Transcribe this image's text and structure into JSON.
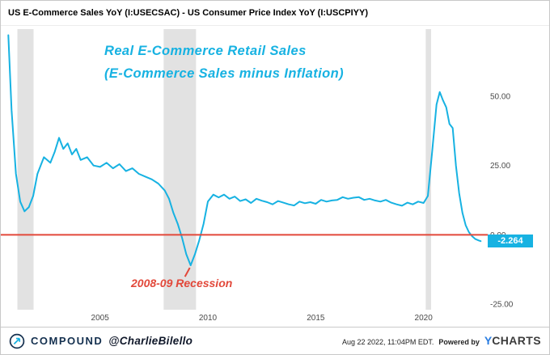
{
  "header": {
    "title": "US E-Commerce Sales YoY (I:USECSAC) - US Consumer Price Index YoY (I:USCPIYY)"
  },
  "annotations": {
    "main_line1": "Real E-Commerce Retail Sales",
    "main_line2": "(E-Commerce Sales minus Inflation)",
    "recession": "2008-09 Recession"
  },
  "badge": {
    "value": "-2.264"
  },
  "footer": {
    "brand": "COMPOUND",
    "handle": "@CharlieBilello",
    "timestamp": "Aug 22 2022, 11:04PM EDT.",
    "powered_by": "Powered by",
    "ycharts_y": "Y",
    "ycharts_rest": "CHARTS"
  },
  "colors": {
    "line": "#17b2e2",
    "red_line": "#e2483a",
    "band": "#e2e2e2",
    "axis_text": "#4a4a4a",
    "badge_bg": "#17b2e2",
    "badge_text": "#ffffff"
  },
  "chart_data": {
    "type": "line",
    "title": "US E-Commerce Sales YoY minus US CPI YoY (Real E-Commerce Retail Sales)",
    "series": [
      {
        "name": "US E-Commerce Sales YoY - US CPI YoY (%)",
        "x": [
          2000.75,
          2000.9,
          2001.1,
          2001.3,
          2001.5,
          2001.7,
          2001.9,
          2002.1,
          2002.4,
          2002.7,
          2002.9,
          2003.1,
          2003.3,
          2003.5,
          2003.7,
          2003.9,
          2004.1,
          2004.4,
          2004.7,
          2005.0,
          2005.3,
          2005.6,
          2005.9,
          2006.2,
          2006.5,
          2006.8,
          2007.1,
          2007.4,
          2007.7,
          2008.0,
          2008.2,
          2008.4,
          2008.6,
          2008.8,
          2009.0,
          2009.2,
          2009.4,
          2009.6,
          2009.8,
          2010.0,
          2010.25,
          2010.5,
          2010.75,
          2011.0,
          2011.25,
          2011.5,
          2011.75,
          2012.0,
          2012.25,
          2012.5,
          2012.75,
          2013.0,
          2013.25,
          2013.5,
          2013.75,
          2014.0,
          2014.25,
          2014.5,
          2014.75,
          2015.0,
          2015.25,
          2015.5,
          2015.75,
          2016.0,
          2016.25,
          2016.5,
          2016.75,
          2017.0,
          2017.25,
          2017.5,
          2017.75,
          2018.0,
          2018.25,
          2018.5,
          2018.75,
          2019.0,
          2019.25,
          2019.5,
          2019.75,
          2020.0,
          2020.2,
          2020.4,
          2020.6,
          2020.75,
          2020.9,
          2021.05,
          2021.2,
          2021.35,
          2021.5,
          2021.65,
          2021.8,
          2021.95,
          2022.1,
          2022.25,
          2022.4,
          2022.55,
          2022.65
        ],
        "values": [
          72,
          45,
          22,
          12,
          8.5,
          10,
          14,
          22,
          28,
          26,
          30,
          35,
          31,
          33,
          29,
          31,
          27,
          28,
          25,
          24.5,
          26,
          24,
          25.5,
          23,
          24,
          22,
          21,
          20,
          18.5,
          16,
          13,
          8,
          4,
          -1,
          -7,
          -11,
          -7,
          -2,
          4,
          12,
          14.5,
          13.5,
          14.5,
          13,
          13.8,
          12.2,
          12.8,
          11.5,
          13,
          12.3,
          11.8,
          11,
          12.2,
          11.6,
          11,
          10.6,
          12,
          11.4,
          11.8,
          11.2,
          12.6,
          12,
          12.4,
          12.6,
          13.6,
          13,
          13.4,
          13.6,
          12.6,
          13,
          12.4,
          12,
          12.6,
          11.6,
          11,
          10.5,
          11.6,
          11,
          12,
          11.5,
          14,
          30,
          47,
          51.5,
          48.5,
          46,
          40,
          38.5,
          25,
          15,
          8,
          3.5,
          1,
          -0.5,
          -1.5,
          -2,
          -2.264
        ]
      }
    ],
    "xlim": [
      2000.7,
      2022.9
    ],
    "ylim": [
      -27,
      74.2
    ],
    "y_ticks": [
      50,
      25,
      0,
      -25
    ],
    "y_tick_labels": [
      "50.00",
      "25.00",
      "0.00",
      "-25.00"
    ],
    "x_ticks": [
      2005,
      2010,
      2015,
      2020
    ],
    "x_tick_labels": [
      "2005",
      "2010",
      "2015",
      "2020"
    ],
    "red_line_value": 0,
    "last_value": -2.264,
    "recession_bands": [
      [
        2001.17,
        2001.92
      ],
      [
        2007.95,
        2009.45
      ],
      [
        2020.1,
        2020.35
      ]
    ],
    "grid": false,
    "legend": false,
    "y_axis_side": "right"
  }
}
